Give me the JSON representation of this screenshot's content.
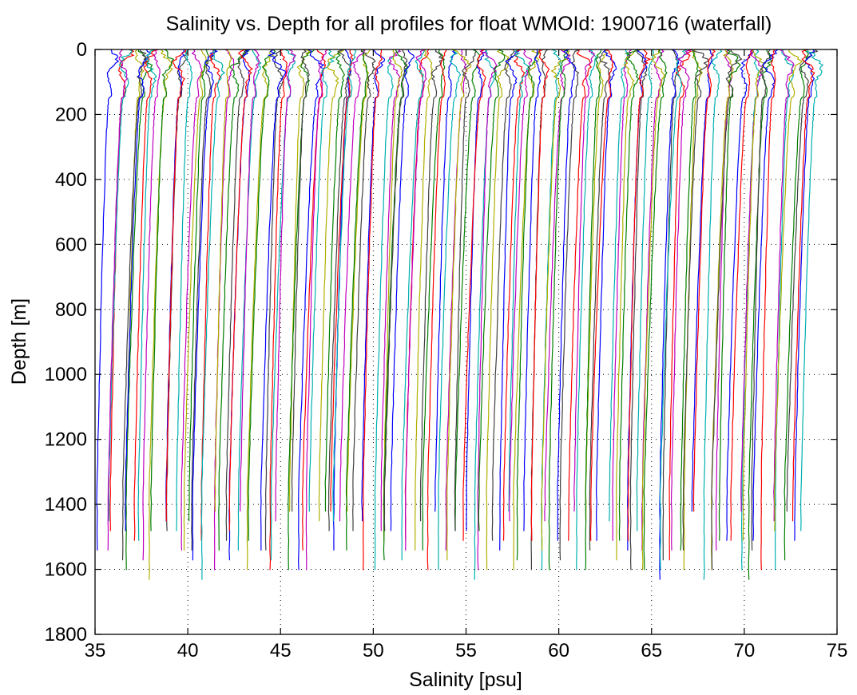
{
  "chart_data": {
    "type": "line",
    "title": "Salinity vs. Depth for all profiles for float WMOId: 1900716 (waterfall)",
    "xlabel": "Salinity [psu]",
    "ylabel": "Depth [m]",
    "xlim": [
      35,
      75
    ],
    "ylim": [
      0,
      1800
    ],
    "y_reversed": true,
    "grid": "dotted",
    "x_ticks": [
      "35",
      "40",
      "45",
      "50",
      "55",
      "60",
      "65",
      "70",
      "75"
    ],
    "y_ticks": [
      "0",
      "200",
      "400",
      "600",
      "800",
      "1000",
      "1200",
      "1400",
      "1600",
      "1800"
    ],
    "color_cycle": [
      "#0000ff",
      "#ff0000",
      "#00b0b0",
      "#c000c0",
      "#b0b000",
      "#007f00",
      "#404040"
    ],
    "series_summary": {
      "count": 150,
      "start_salinity_surface": 36.1,
      "offset_per_profile": 0.254,
      "surface_salinity_range": [
        35.9,
        36.8
      ],
      "deep_salinity_drop": 0.75,
      "max_depth_range_m": [
        1440,
        1640
      ]
    }
  }
}
